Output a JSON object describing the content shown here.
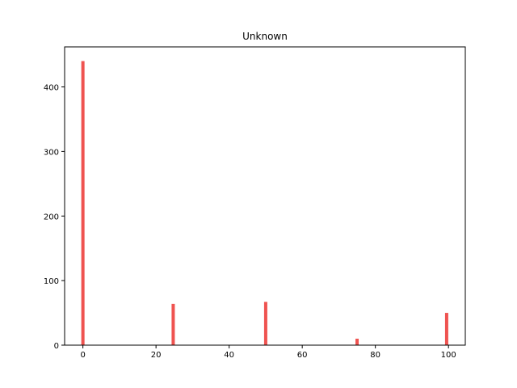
{
  "chart_data": {
    "type": "bar",
    "title": "Unknown",
    "xlabel": "",
    "ylabel": "",
    "x": [
      0,
      24.7,
      50,
      75,
      99.5
    ],
    "values": [
      440,
      64,
      67,
      10,
      50
    ],
    "xlim": [
      -5,
      104.6
    ],
    "ylim": [
      0,
      462
    ],
    "xticks": [
      0,
      20,
      40,
      60,
      80,
      100
    ],
    "yticks": [
      0,
      100,
      200,
      300,
      400
    ],
    "bar_color": "#ef5350",
    "grid": false,
    "legend": "none"
  }
}
